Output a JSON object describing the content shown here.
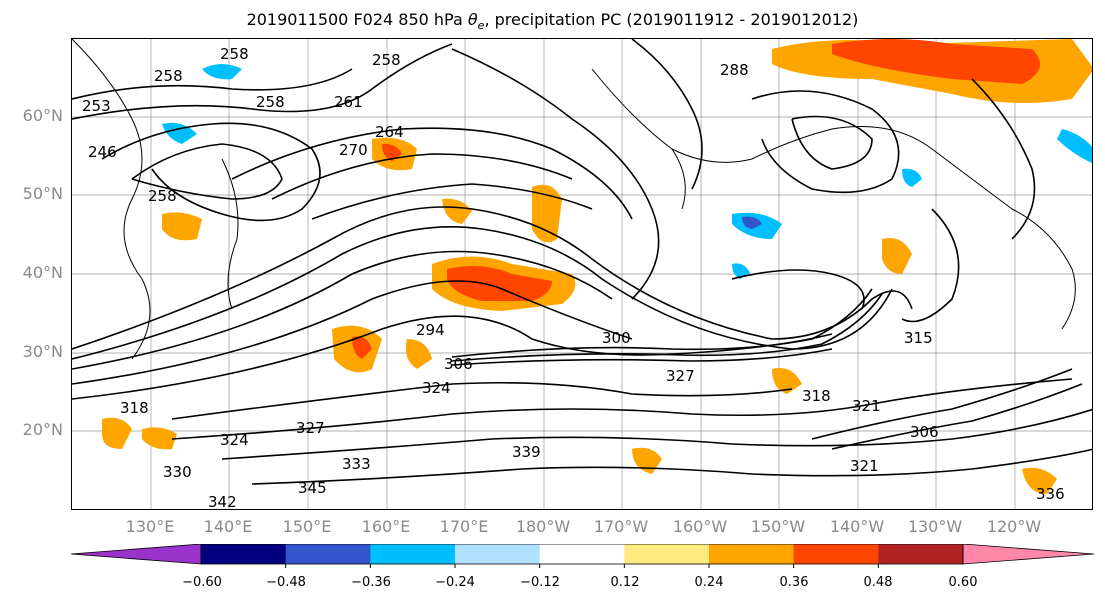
{
  "title_pre": "2019011500 F024 850 hPa ",
  "title_theta": "θ",
  "title_sub": "e",
  "title_post": ", precipitation PC (2019011912 - 2019012012)",
  "lat_labels": [
    "60°N",
    "50°N",
    "40°N",
    "30°N",
    "20°N"
  ],
  "lon_labels": [
    "130°E",
    "140°E",
    "150°E",
    "160°E",
    "170°E",
    "180°W",
    "170°W",
    "160°W",
    "150°W",
    "140°W",
    "130°W",
    "120°W"
  ],
  "colorbar": {
    "colors": [
      "#9933cc",
      "#000080",
      "#3355cc",
      "#00bfff",
      "#b0e2ff",
      "#ffffff",
      "#ffea80",
      "#ffa500",
      "#ff4500",
      "#b22222",
      "#ff88aa"
    ],
    "tick_labels": [
      "−0.60",
      "−0.48",
      "−0.36",
      "−0.24",
      "−0.12",
      "0.12",
      "0.24",
      "0.36",
      "0.48",
      "0.60"
    ]
  },
  "contour_labels": [
    "258",
    "258",
    "258",
    "258",
    "253",
    "246",
    "258",
    "261",
    "264",
    "270",
    "288",
    "294",
    "300",
    "306",
    "327",
    "318",
    "321",
    "324",
    "327",
    "330",
    "333",
    "336",
    "339",
    "342",
    "345",
    "306",
    "315",
    "318",
    "321",
    "324"
  ]
}
